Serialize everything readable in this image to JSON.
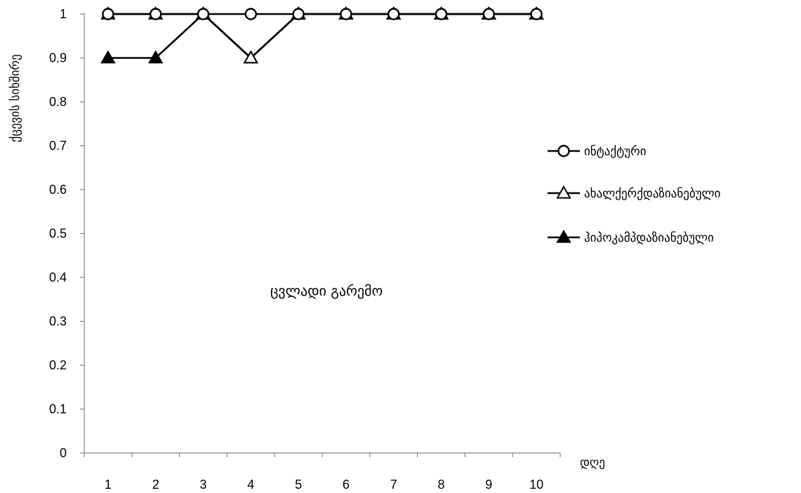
{
  "chart_data": {
    "type": "line",
    "title": "",
    "xlabel": "დღე",
    "ylabel": "ქცევის სიხშირე",
    "annotation": "ცვლადი გარემო",
    "categories": [
      "1",
      "2",
      "3",
      "4",
      "5",
      "6",
      "7",
      "8",
      "9",
      "10"
    ],
    "ylim": [
      0,
      1
    ],
    "yticks": [
      "0",
      "0.1",
      "0.2",
      "0.3",
      "0.4",
      "0.5",
      "0.6",
      "0.7",
      "0.8",
      "0.9",
      "1"
    ],
    "grid": false,
    "legend_position": "right",
    "series": [
      {
        "name": "ინტაქტური",
        "marker": "open-circle",
        "values": [
          1,
          1,
          1,
          1,
          1,
          1,
          1,
          1,
          1,
          1
        ]
      },
      {
        "name": "ახალქერქდაზიანებული",
        "marker": "open-triangle",
        "values": [
          1,
          1,
          1,
          0.9,
          1,
          1,
          1,
          1,
          1,
          1
        ]
      },
      {
        "name": "ჰიპოკამპდაზიანებული",
        "marker": "filled-triangle",
        "values": [
          0.9,
          0.9,
          1,
          0.9,
          1,
          1,
          1,
          1,
          1,
          1
        ]
      }
    ]
  }
}
